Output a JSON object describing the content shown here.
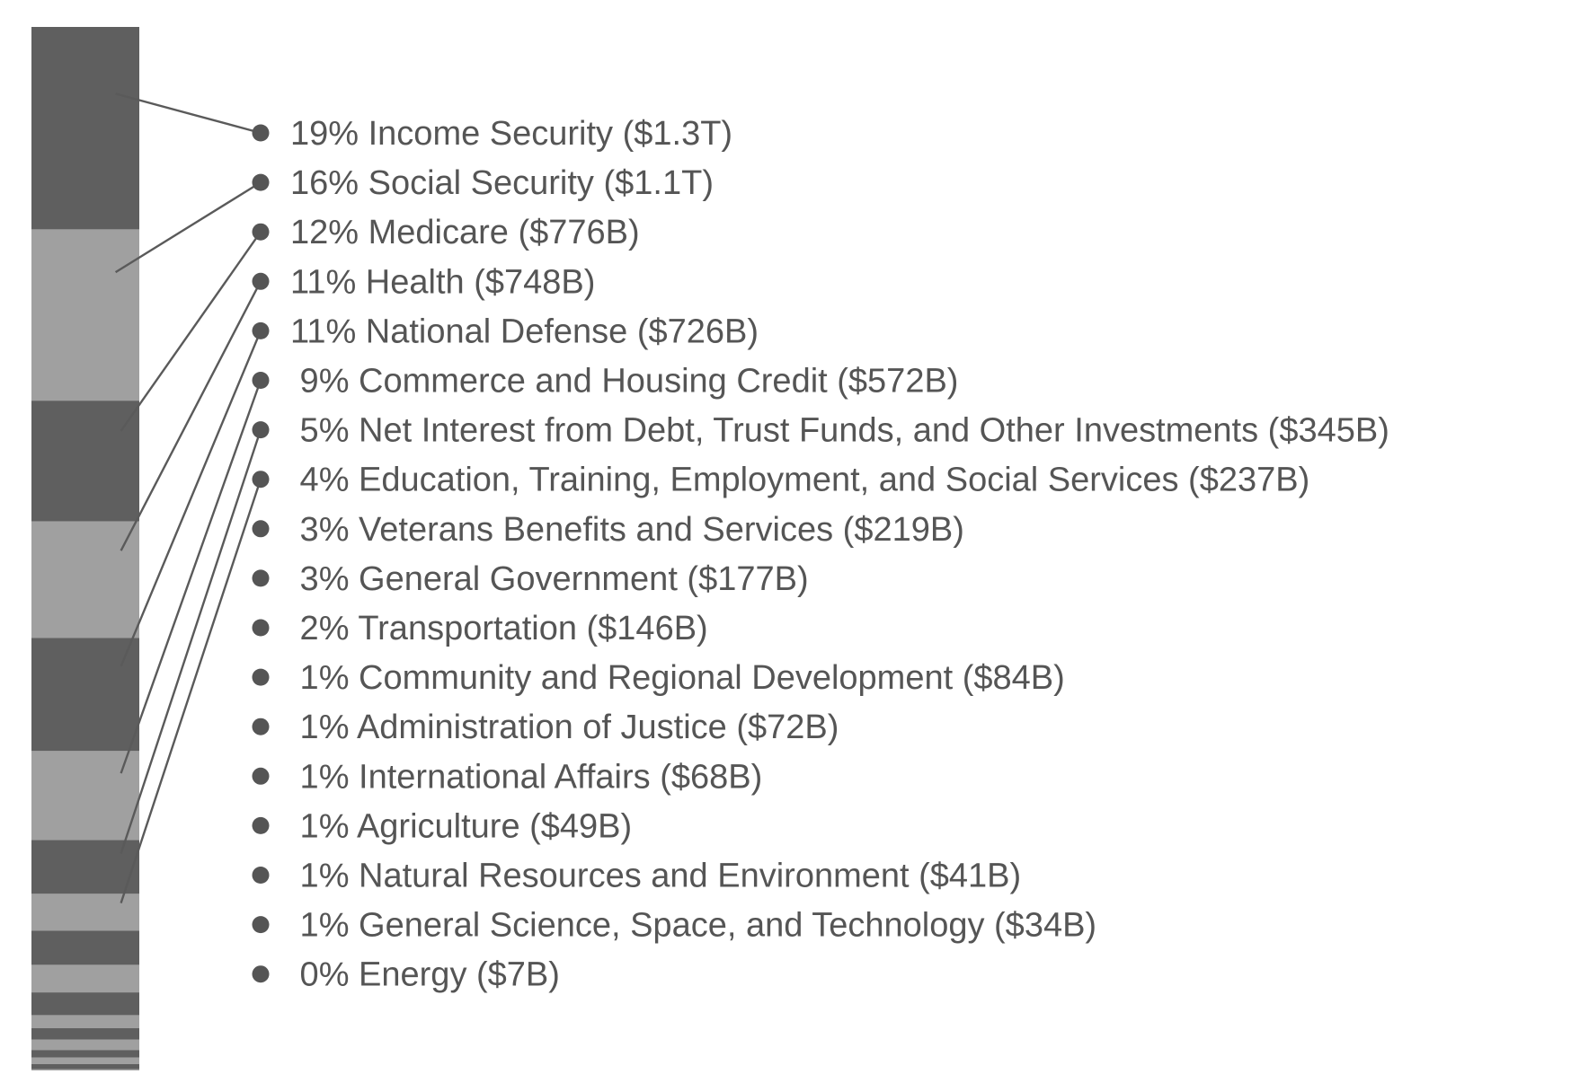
{
  "chart_data": {
    "type": "bar",
    "orientation": "stacked-vertical",
    "unit": "$B",
    "colors": {
      "dark": "#5f5f5f",
      "light": "#a0a0a0",
      "text": "#555555",
      "leader": "#5a5a5a"
    },
    "items": [
      {
        "label": "19% Income Security ($1.3T)",
        "pct": 19,
        "value": 1300
      },
      {
        "label": "16% Social Security ($1.1T)",
        "pct": 16,
        "value": 1100
      },
      {
        "label": "12% Medicare ($776B)",
        "pct": 12,
        "value": 776
      },
      {
        "label": "11% Health ($748B)",
        "pct": 11,
        "value": 748
      },
      {
        "label": "11% National Defense ($726B)",
        "pct": 11,
        "value": 726
      },
      {
        "label": " 9% Commerce and Housing Credit ($572B)",
        "pct": 9,
        "value": 572
      },
      {
        "label": " 5% Net Interest from Debt, Trust Funds, and Other Investments ($345B)",
        "pct": 5,
        "value": 345
      },
      {
        "label": " 4% Education, Training, Employment, and Social Services ($237B)",
        "pct": 4,
        "value": 237
      },
      {
        "label": " 3% Veterans Benefits and Services ($219B)",
        "pct": 3,
        "value": 219
      },
      {
        "label": " 3% General Government ($177B)",
        "pct": 3,
        "value": 177
      },
      {
        "label": " 2% Transportation ($146B)",
        "pct": 2,
        "value": 146
      },
      {
        "label": " 1% Community and Regional Development ($84B)",
        "pct": 1,
        "value": 84
      },
      {
        "label": " 1% Administration of Justice ($72B)",
        "pct": 1,
        "value": 72
      },
      {
        "label": " 1% International Affairs ($68B)",
        "pct": 1,
        "value": 68
      },
      {
        "label": " 1% Agriculture ($49B)",
        "pct": 1,
        "value": 49
      },
      {
        "label": " 1% Natural Resources and Environment ($41B)",
        "pct": 1,
        "value": 41
      },
      {
        "label": " 1% General Science, Space, and Technology ($34B)",
        "pct": 1,
        "value": 34
      },
      {
        "label": " 0% Energy ($7B)",
        "pct": 0,
        "value": 7
      }
    ],
    "leader_lines_for_first": 8
  }
}
